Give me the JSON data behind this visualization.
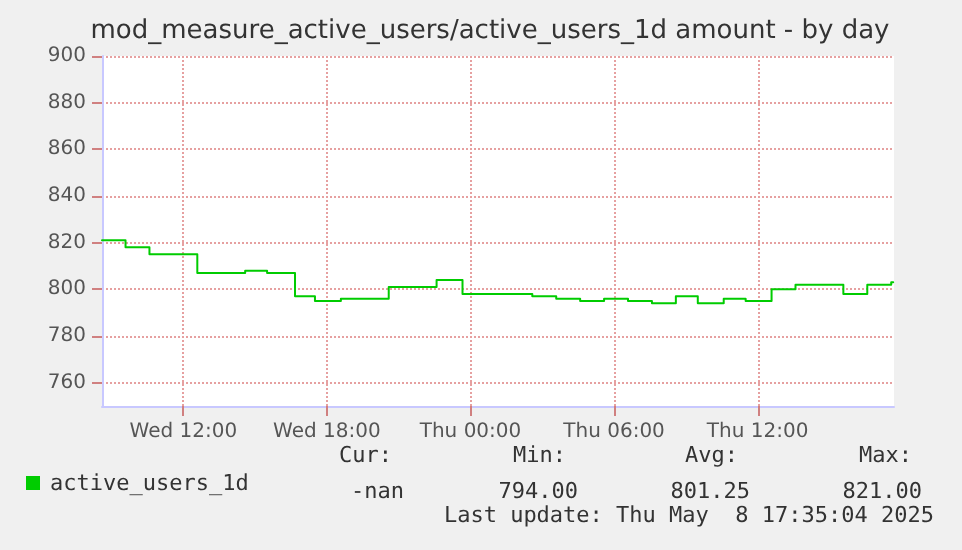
{
  "chart_data": {
    "type": "step",
    "title": "mod_measure_active_users/active_users_1d amount - by day",
    "x": [
      "2025-05-07T08:36",
      "2025-05-07T09:35",
      "2025-05-07T10:35",
      "2025-05-07T12:35",
      "2025-05-07T14:35",
      "2025-05-07T15:30",
      "2025-05-07T16:40",
      "2025-05-07T17:30",
      "2025-05-07T18:35",
      "2025-05-07T20:35",
      "2025-05-07T22:35",
      "2025-05-07T23:40",
      "2025-05-08T02:35",
      "2025-05-08T03:35",
      "2025-05-08T04:35",
      "2025-05-08T05:35",
      "2025-05-08T06:35",
      "2025-05-08T07:35",
      "2025-05-08T08:35",
      "2025-05-08T09:30",
      "2025-05-08T10:35",
      "2025-05-08T11:30",
      "2025-05-08T12:35",
      "2025-05-08T13:35",
      "2025-05-08T15:35",
      "2025-05-08T16:35",
      "2025-05-08T17:35",
      "2025-05-08T17:40"
    ],
    "series": [
      {
        "name": "active_users_1d",
        "color": "#00cc00",
        "values": [
          821,
          818,
          815,
          807,
          808,
          807,
          797,
          795,
          796,
          801,
          804,
          798,
          797,
          796,
          795,
          796,
          795,
          794,
          797,
          794,
          796,
          795,
          800,
          802,
          798,
          802,
          803,
          803
        ]
      }
    ],
    "xlim": [
      "2025-05-07T08:36",
      "2025-05-08T17:42"
    ],
    "xticks": [
      {
        "value": "2025-05-07T12:00",
        "label": "Wed 12:00"
      },
      {
        "value": "2025-05-07T18:00",
        "label": "Wed 18:00"
      },
      {
        "value": "2025-05-08T00:00",
        "label": "Thu 00:00"
      },
      {
        "value": "2025-05-08T06:00",
        "label": "Thu 06:00"
      },
      {
        "value": "2025-05-08T12:00",
        "label": "Thu 12:00"
      }
    ],
    "ylim": [
      750,
      900
    ],
    "yticks": [
      760,
      780,
      800,
      820,
      840,
      860,
      880,
      900
    ],
    "grid": true,
    "legend": "bottom left",
    "line_style": "solid",
    "annotations": [
      "Cur:",
      "Min:",
      "Avg:",
      "Max:",
      "-nan",
      "794.00",
      "801.25",
      "821.00",
      "Last update: Thu May  8 17:35:04 2025"
    ]
  }
}
